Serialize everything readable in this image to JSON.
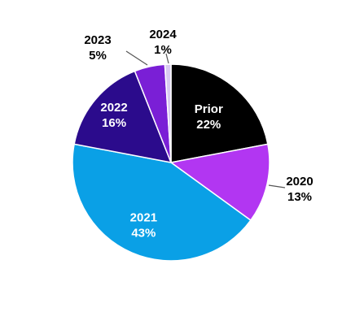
{
  "chart_data": {
    "type": "pie",
    "categories": [
      "Prior",
      "2020",
      "2021",
      "2022",
      "2023",
      "2024"
    ],
    "values": [
      22,
      13,
      43,
      16,
      5,
      1
    ],
    "value_labels": [
      "22%",
      "13%",
      "43%",
      "16%",
      "5%",
      "1%"
    ],
    "colors": [
      "#000000",
      "#b236f2",
      "#0aa0e6",
      "#2b0b8c",
      "#7a1fd6",
      "#d9c9f2"
    ]
  }
}
